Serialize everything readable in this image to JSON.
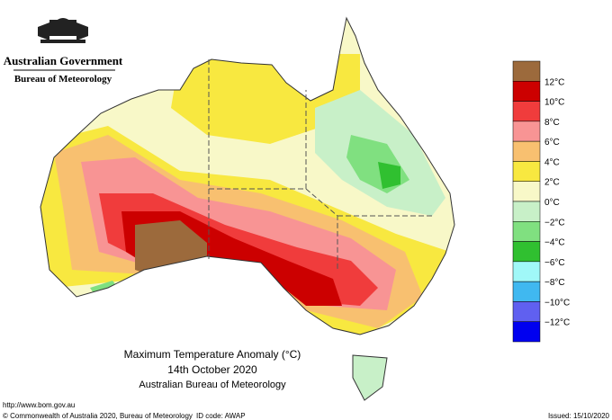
{
  "header": {
    "government": "Australian Government",
    "bureau": "Bureau of Meteorology"
  },
  "title": {
    "line1": "Maximum Temperature Anomaly (°C)",
    "line2": "14th October 2020",
    "line3": "Australian Bureau of Meteorology"
  },
  "legend": {
    "colors": [
      "#9c6a3c",
      "#cc0000",
      "#f03c3c",
      "#f89494",
      "#f8c070",
      "#f8e840",
      "#f8f8c8",
      "#c8f0c8",
      "#80e080",
      "#30c030",
      "#a0f8f8",
      "#40b8f0",
      "#6060f0",
      "#0000f0"
    ],
    "labels": [
      "12°C",
      "10°C",
      "8°C",
      "6°C",
      "4°C",
      "2°C",
      "0°C",
      "−2°C",
      "−4°C",
      "−6°C",
      "−8°C",
      "−10°C",
      "−12°C"
    ]
  },
  "footer": {
    "url": "http://www.bom.gov.au",
    "copyright": "© Commonwealth of Australia 2020, Bureau of Meteorology",
    "id_code": "ID code: AWAP",
    "issued": "Issued: 15/10/2020"
  }
}
